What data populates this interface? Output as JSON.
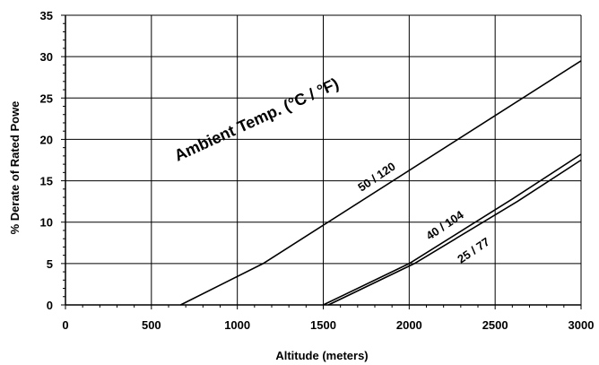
{
  "chart_data": {
    "type": "line",
    "title": "",
    "xlabel": "Altitude (meters)",
    "ylabel": "% Derate of Rated Powe",
    "xlim": [
      0,
      3000
    ],
    "ylim": [
      0,
      35
    ],
    "x_ticks": [
      "0",
      "500",
      "1000",
      "1500",
      "2000",
      "2500",
      "3000"
    ],
    "y_ticks": [
      "0",
      "5",
      "10",
      "15",
      "20",
      "25",
      "30",
      "35"
    ],
    "grid": true,
    "legend": "none",
    "annotations": [
      {
        "id": "annot",
        "text": "Ambient Temp. (°C / °F)"
      }
    ],
    "series": [
      {
        "name": "50 / 120",
        "points": [
          [
            670,
            0
          ],
          [
            1150,
            5
          ],
          [
            3000,
            29.5
          ]
        ]
      },
      {
        "name": "40 / 104",
        "points": [
          [
            1500,
            0
          ],
          [
            2000,
            5
          ],
          [
            2600,
            12.8
          ],
          [
            3000,
            18.2
          ]
        ]
      },
      {
        "name": "25 / 77",
        "points": [
          [
            1530,
            0
          ],
          [
            2030,
            5
          ],
          [
            2630,
            12.5
          ],
          [
            3000,
            17.5
          ]
        ]
      }
    ]
  }
}
